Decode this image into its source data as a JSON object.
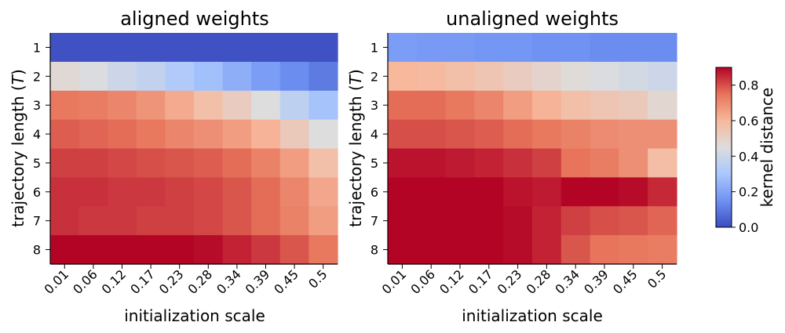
{
  "chart_data": [
    {
      "type": "heatmap",
      "title": "aligned weights",
      "xlabel": "initialization scale",
      "ylabel": "trajectory length (T)",
      "ylabel_prefix": "trajectory length (",
      "ylabel_var": "T",
      "ylabel_suffix": ")",
      "x_categories": [
        "0.01",
        "0.06",
        "0.12",
        "0.17",
        "0.23",
        "0.28",
        "0.34",
        "0.39",
        "0.45",
        "0.5"
      ],
      "y_categories": [
        "1",
        "2",
        "3",
        "4",
        "5",
        "6",
        "7",
        "8"
      ],
      "values": [
        [
          0.01,
          0.01,
          0.01,
          0.01,
          0.01,
          0.01,
          0.01,
          0.01,
          0.01,
          0.01
        ],
        [
          0.47,
          0.44,
          0.4,
          0.37,
          0.32,
          0.28,
          0.23,
          0.18,
          0.14,
          0.1
        ],
        [
          0.74,
          0.73,
          0.71,
          0.68,
          0.63,
          0.57,
          0.52,
          0.45,
          0.36,
          0.29
        ],
        [
          0.78,
          0.77,
          0.76,
          0.74,
          0.71,
          0.69,
          0.66,
          0.61,
          0.53,
          0.45
        ],
        [
          0.82,
          0.82,
          0.81,
          0.8,
          0.79,
          0.78,
          0.76,
          0.72,
          0.66,
          0.57
        ],
        [
          0.84,
          0.84,
          0.83,
          0.83,
          0.82,
          0.81,
          0.79,
          0.76,
          0.71,
          0.64
        ],
        [
          0.84,
          0.83,
          0.83,
          0.82,
          0.82,
          0.81,
          0.79,
          0.76,
          0.72,
          0.66
        ],
        [
          0.9,
          0.9,
          0.9,
          0.9,
          0.9,
          0.89,
          0.86,
          0.83,
          0.79,
          0.74
        ]
      ]
    },
    {
      "type": "heatmap",
      "title": "unaligned weights",
      "xlabel": "initialization scale",
      "ylabel": "trajectory length (T)",
      "ylabel_prefix": "trajectory length (",
      "ylabel_var": "T",
      "ylabel_suffix": ")",
      "x_categories": [
        "0.01",
        "0.06",
        "0.12",
        "0.17",
        "0.23",
        "0.28",
        "0.34",
        "0.39",
        "0.45",
        "0.5"
      ],
      "y_categories": [
        "1",
        "2",
        "3",
        "4",
        "5",
        "6",
        "7",
        "8"
      ],
      "values": [
        [
          0.18,
          0.17,
          0.17,
          0.16,
          0.16,
          0.15,
          0.15,
          0.14,
          0.14,
          0.14
        ],
        [
          0.6,
          0.59,
          0.57,
          0.55,
          0.52,
          0.49,
          0.46,
          0.44,
          0.42,
          0.4
        ],
        [
          0.76,
          0.76,
          0.74,
          0.71,
          0.66,
          0.61,
          0.57,
          0.55,
          0.53,
          0.48
        ],
        [
          0.8,
          0.8,
          0.79,
          0.78,
          0.76,
          0.74,
          0.72,
          0.7,
          0.69,
          0.69
        ],
        [
          0.88,
          0.88,
          0.87,
          0.86,
          0.84,
          0.82,
          0.75,
          0.73,
          0.69,
          0.58
        ],
        [
          0.9,
          0.9,
          0.9,
          0.9,
          0.88,
          0.87,
          0.9,
          0.9,
          0.89,
          0.85
        ],
        [
          0.9,
          0.9,
          0.9,
          0.9,
          0.89,
          0.86,
          0.82,
          0.8,
          0.79,
          0.77
        ],
        [
          0.9,
          0.9,
          0.9,
          0.9,
          0.89,
          0.86,
          0.79,
          0.75,
          0.74,
          0.73
        ]
      ]
    }
  ],
  "colorbar": {
    "label": "kernel distance",
    "vmin": 0.0,
    "vmax": 0.9,
    "ticks": [
      "0.0",
      "0.2",
      "0.4",
      "0.6",
      "0.8"
    ],
    "tick_values": [
      0.0,
      0.2,
      0.4,
      0.6,
      0.8
    ],
    "colormap": "coolwarm",
    "colormap_stops": [
      "#3b4cc0",
      "#7092f3",
      "#aac7fd",
      "#dddddd",
      "#f7b89c",
      "#e7745b",
      "#b40426"
    ]
  }
}
